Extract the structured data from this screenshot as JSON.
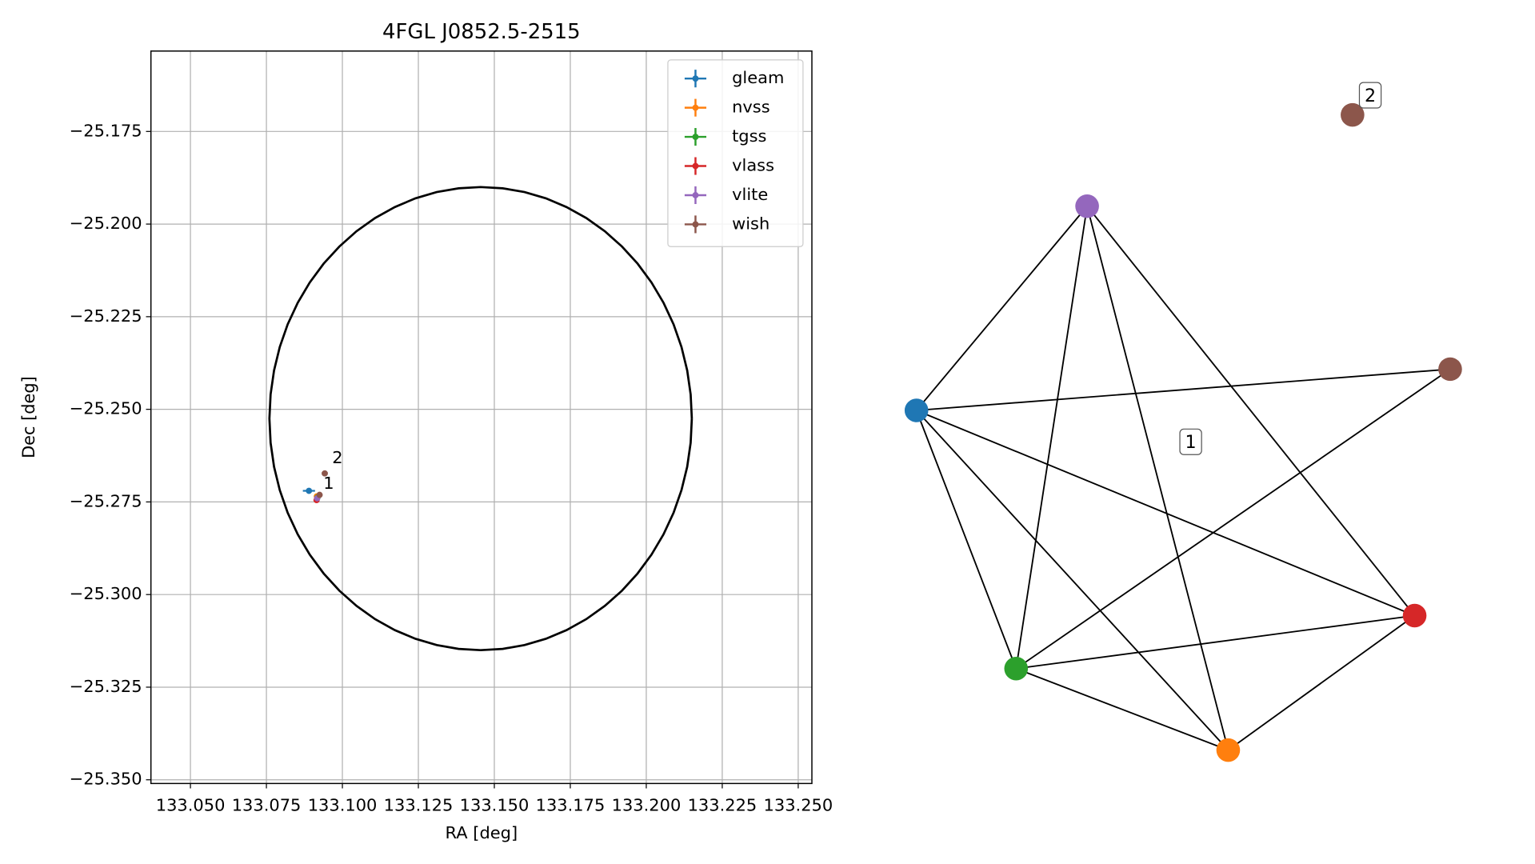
{
  "chart_data": {
    "type": "scatter",
    "title": "4FGL J0852.5-2515",
    "x_label": "RA [deg]",
    "y_label": "Dec [deg]",
    "xlim": [
      133.037,
      133.2545
    ],
    "ylim": [
      -25.351,
      -25.1533
    ],
    "xticks": [
      {
        "value": 133.05,
        "label": "133.050"
      },
      {
        "value": 133.075,
        "label": "133.075"
      },
      {
        "value": 133.1,
        "label": "133.100"
      },
      {
        "value": 133.125,
        "label": "133.125"
      },
      {
        "value": 133.15,
        "label": "133.150"
      },
      {
        "value": 133.175,
        "label": "133.175"
      },
      {
        "value": 133.2,
        "label": "133.200"
      },
      {
        "value": 133.225,
        "label": "133.225"
      },
      {
        "value": 133.25,
        "label": "133.250"
      }
    ],
    "yticks": [
      {
        "value": -25.175,
        "label": "−25.175"
      },
      {
        "value": -25.2,
        "label": "−25.200"
      },
      {
        "value": -25.225,
        "label": "−25.225"
      },
      {
        "value": -25.25,
        "label": "−25.250"
      },
      {
        "value": -25.275,
        "label": "−25.275"
      },
      {
        "value": -25.3,
        "label": "−25.300"
      },
      {
        "value": -25.325,
        "label": "−25.325"
      },
      {
        "value": -25.35,
        "label": "−25.350"
      }
    ],
    "grid": true,
    "legend": "upper right",
    "series": [
      {
        "name": "gleam",
        "color": "#1f77b4",
        "x": [
          133.089
        ],
        "y": [
          -25.272
        ],
        "xerr": [
          0.002
        ],
        "yerr": [
          0.0005
        ]
      },
      {
        "name": "nvss",
        "color": "#ff7f0e",
        "x": [
          133.0916
        ],
        "y": [
          -25.2735
        ],
        "xerr": [
          0.0005
        ],
        "yerr": [
          0.0005
        ]
      },
      {
        "name": "tgss",
        "color": "#2ca02c",
        "x": [
          133.0918
        ],
        "y": [
          -25.2738
        ],
        "xerr": [
          0.0005
        ],
        "yerr": [
          0.0005
        ]
      },
      {
        "name": "vlass",
        "color": "#d62728",
        "x": [
          133.0915
        ],
        "y": [
          -25.2745
        ],
        "xerr": [
          0.0005
        ],
        "yerr": [
          0.0005
        ]
      },
      {
        "name": "vlite",
        "color": "#9467bd",
        "x": [
          133.0917
        ],
        "y": [
          -25.274
        ],
        "xerr": [
          0.0005
        ],
        "yerr": [
          0.0005
        ]
      },
      {
        "name": "wish",
        "color": "#8c564b",
        "x": [
          133.0925,
          133.0942
        ],
        "y": [
          -25.2731,
          -25.2673
        ],
        "xerr": [
          0.0005,
          0.0005
        ],
        "yerr": [
          0.0005,
          0.0005
        ]
      }
    ],
    "annotations": [
      {
        "text": "1",
        "x": 133.0955,
        "y": -25.2702
      },
      {
        "text": "2",
        "x": 133.0984,
        "y": -25.2633
      }
    ],
    "ellipse": {
      "center": [
        133.1455,
        -25.2525
      ],
      "width": 0.139,
      "height": 0.125,
      "color": "#000000"
    }
  }
}
